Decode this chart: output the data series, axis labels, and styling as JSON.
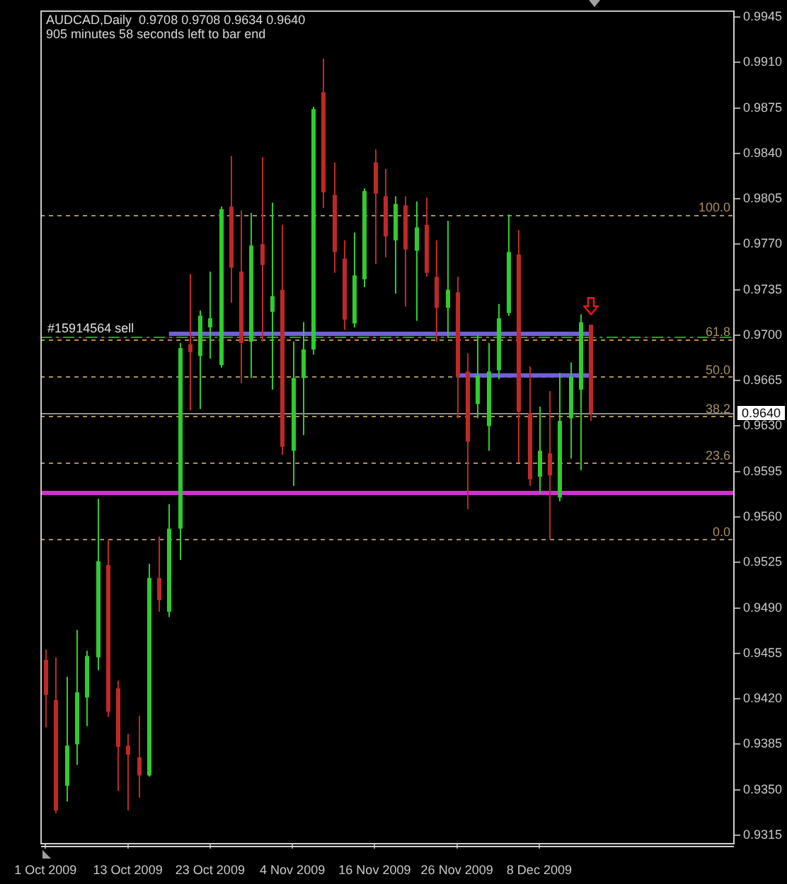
{
  "chart_data": {
    "type": "candlestick",
    "title": "AUDCAD,Daily  0.9708 0.9708 0.9634 0.9640",
    "subtitle": "905 minutes 58 seconds left to bar end",
    "categories": [
      "1 Oct 2009",
      null,
      null,
      null,
      null,
      null,
      null,
      null,
      "13 Oct 2009",
      null,
      null,
      null,
      null,
      null,
      null,
      null,
      "23 Oct 2009",
      null,
      null,
      null,
      null,
      null,
      null,
      null,
      "4 Nov 2009",
      null,
      null,
      null,
      null,
      null,
      null,
      null,
      "16 Nov 2009",
      null,
      null,
      null,
      null,
      null,
      null,
      null,
      "26 Nov 2009",
      null,
      null,
      null,
      null,
      null,
      null,
      null,
      "8 Dec 2009",
      null,
      null,
      null,
      null,
      null
    ],
    "ohlc": [
      [
        0.945,
        0.9458,
        0.9398,
        0.9423
      ],
      [
        0.9419,
        0.9452,
        0.9332,
        0.9334
      ],
      [
        0.9353,
        0.9437,
        0.9341,
        0.9384
      ],
      [
        0.9385,
        0.9473,
        0.9369,
        0.9425
      ],
      [
        0.9421,
        0.9457,
        0.9399,
        0.9453
      ],
      [
        0.9452,
        0.9574,
        0.9442,
        0.9526
      ],
      [
        0.9523,
        0.9542,
        0.9406,
        0.941
      ],
      [
        0.9428,
        0.9434,
        0.9349,
        0.9383
      ],
      [
        0.9384,
        0.9393,
        0.9334,
        0.9377
      ],
      [
        0.9375,
        0.9407,
        0.9344,
        0.9361
      ],
      [
        0.9361,
        0.9524,
        0.936,
        0.9513
      ],
      [
        0.9513,
        0.9545,
        0.9487,
        0.9496
      ],
      [
        0.9487,
        0.957,
        0.9483,
        0.9551
      ],
      [
        0.9551,
        0.9694,
        0.9527,
        0.969
      ],
      [
        0.9693,
        0.9747,
        0.9642,
        0.9687
      ],
      [
        0.9684,
        0.9719,
        0.9643,
        0.9715
      ],
      [
        0.9706,
        0.9749,
        0.9682,
        0.9713
      ],
      [
        0.9677,
        0.9799,
        0.9675,
        0.9797
      ],
      [
        0.9799,
        0.9838,
        0.9725,
        0.9752
      ],
      [
        0.9749,
        0.9796,
        0.9663,
        0.9694
      ],
      [
        0.9695,
        0.9794,
        0.9667,
        0.9769
      ],
      [
        0.977,
        0.9837,
        0.9695,
        0.9754
      ],
      [
        0.9718,
        0.9802,
        0.9658,
        0.973
      ],
      [
        0.9735,
        0.9785,
        0.9608,
        0.9614
      ],
      [
        0.9611,
        0.9695,
        0.9584,
        0.9667
      ],
      [
        0.9667,
        0.971,
        0.9623,
        0.9689
      ],
      [
        0.9689,
        0.9876,
        0.9685,
        0.9874
      ],
      [
        0.9887,
        0.9913,
        0.9798,
        0.981
      ],
      [
        0.9808,
        0.9833,
        0.9748,
        0.9764
      ],
      [
        0.9759,
        0.9773,
        0.9704,
        0.9712
      ],
      [
        0.9709,
        0.9779,
        0.9706,
        0.9746
      ],
      [
        0.9743,
        0.9813,
        0.9737,
        0.9811
      ],
      [
        0.9833,
        0.9843,
        0.9755,
        0.9809
      ],
      [
        0.9807,
        0.9828,
        0.976,
        0.9776
      ],
      [
        0.9773,
        0.9807,
        0.9732,
        0.9801
      ],
      [
        0.98,
        0.9807,
        0.9722,
        0.9766
      ],
      [
        0.9765,
        0.9803,
        0.9711,
        0.9783
      ],
      [
        0.9785,
        0.9806,
        0.9745,
        0.9748
      ],
      [
        0.9745,
        0.9773,
        0.9695,
        0.9721
      ],
      [
        0.9721,
        0.9788,
        0.9698,
        0.9735
      ],
      [
        0.9733,
        0.9745,
        0.9636,
        0.9668
      ],
      [
        0.9672,
        0.9686,
        0.9566,
        0.9618
      ],
      [
        0.9647,
        0.97,
        0.9636,
        0.9669
      ],
      [
        0.963,
        0.9694,
        0.9611,
        0.9672
      ],
      [
        0.9673,
        0.9724,
        0.9666,
        0.9713
      ],
      [
        0.9717,
        0.9793,
        0.9715,
        0.9764
      ],
      [
        0.9762,
        0.9781,
        0.9602,
        0.9641
      ],
      [
        0.964,
        0.9676,
        0.9584,
        0.9589
      ],
      [
        0.9591,
        0.9645,
        0.9578,
        0.9611
      ],
      [
        0.9609,
        0.9657,
        0.9543,
        0.9592
      ],
      [
        0.9575,
        0.9671,
        0.9572,
        0.9634
      ],
      [
        0.9636,
        0.9679,
        0.9605,
        0.9668
      ],
      [
        0.9658,
        0.9716,
        0.9596,
        0.971
      ],
      [
        0.9708,
        0.9708,
        0.9634,
        0.964
      ]
    ],
    "colors": [
      "#c02828",
      "#c02828",
      "#2ecc2e",
      "#2ecc2e",
      "#2ecc2e",
      "#2ecc2e",
      "#c02828",
      "#c02828",
      "#c02828",
      "#c02828",
      "#2ecc2e",
      "#c02828",
      "#2ecc2e",
      "#2ecc2e",
      "#c02828",
      "#2ecc2e",
      "#2ecc2e",
      "#2ecc2e",
      "#c02828",
      "#c02828",
      "#2ecc2e",
      "#c02828",
      "#2ecc2e",
      "#c02828",
      "#2ecc2e",
      "#2ecc2e",
      "#2ecc2e",
      "#c02828",
      "#c02828",
      "#c02828",
      "#2ecc2e",
      "#2ecc2e",
      "#c02828",
      "#c02828",
      "#2ecc2e",
      "#c02828",
      "#2ecc2e",
      "#c02828",
      "#c02828",
      "#2ecc2e",
      "#c02828",
      "#c02828",
      "#2ecc2e",
      "#2ecc2e",
      "#2ecc2e",
      "#2ecc2e",
      "#c02828",
      "#c02828",
      "#2ecc2e",
      "#c02828",
      "#2ecc2e",
      "#2ecc2e",
      "#2ecc2e",
      "#c02828"
    ],
    "series": [
      {
        "type": "line",
        "color": "#7060d8",
        "values": [
          null,
          null,
          null,
          null,
          null,
          null,
          null,
          null,
          null,
          null,
          null,
          null,
          0.9701,
          0.9701,
          0.9701,
          0.9701,
          0.9701,
          0.9701,
          0.9701,
          0.9701,
          0.9701,
          0.9701,
          0.9701,
          0.9701,
          0.9701,
          0.9701,
          0.9701,
          0.9701,
          0.9701,
          0.9701,
          0.9701,
          0.9701,
          0.9701,
          0.9701,
          0.9701,
          0.9701,
          0.9701,
          0.9701,
          0.9701,
          0.9701,
          0.9701,
          0.9701,
          0.9701,
          0.9701,
          0.9701,
          0.9701,
          0.9701,
          0.9701,
          0.9701,
          0.9701,
          0.9701,
          0.9701,
          0.9701,
          0.9701
        ]
      },
      {
        "type": "line",
        "color": "#7060d8",
        "values": [
          null,
          null,
          null,
          null,
          null,
          null,
          null,
          null,
          null,
          null,
          null,
          null,
          null,
          null,
          null,
          null,
          null,
          null,
          null,
          null,
          null,
          null,
          null,
          null,
          null,
          null,
          null,
          null,
          null,
          null,
          null,
          null,
          null,
          null,
          null,
          null,
          null,
          null,
          null,
          null,
          0.9669,
          0.9669,
          0.9669,
          0.9669,
          0.9669,
          0.9669,
          0.9669,
          0.9669,
          0.9669,
          0.9669,
          0.9669,
          0.9669,
          0.9669,
          0.9669
        ]
      }
    ],
    "ref_lines": [
      {
        "axis": "y",
        "value": 0.9699,
        "label": "#15914564 sell",
        "color": "#00b400",
        "line_style": "dashed"
      },
      {
        "axis": "y",
        "value": 0.964,
        "label": "0.9640",
        "color": "#8c8c8c",
        "line_style": "solid"
      },
      {
        "axis": "y",
        "value": 0.9579,
        "color": "#cc33cc",
        "line_style": "solid"
      },
      {
        "axis": "y",
        "value": 0.9793,
        "color": "#a89060",
        "line_style": "dotted"
      },
      {
        "axis": "y",
        "value": 0.9697,
        "color": "#a89060",
        "line_style": "dotted"
      },
      {
        "axis": "y",
        "value": 0.9668,
        "color": "#a89060",
        "line_style": "dotted"
      },
      {
        "axis": "y",
        "value": 0.9638,
        "color": "#a89060",
        "line_style": "dotted"
      },
      {
        "axis": "y",
        "value": 0.9602,
        "color": "#a89060",
        "line_style": "dotted"
      },
      {
        "axis": "y",
        "value": 0.9543,
        "color": "#a89060",
        "line_style": "dotted"
      }
    ],
    "annotations": [
      {
        "text": "100.0",
        "y": 0.9793
      },
      {
        "text": "61.8",
        "y": 0.9697
      },
      {
        "text": "50.0",
        "y": 0.9668
      },
      {
        "text": "38.2",
        "y": 0.9638
      },
      {
        "text": "23.6",
        "y": 0.9602
      },
      {
        "text": "0.0",
        "y": 0.9543
      }
    ],
    "ylim": [
      0.9309,
      0.995
    ],
    "yticks": [
      0.9315,
      {
        "value": 0.935,
        "label": "0.9350"
      },
      0.9385,
      {
        "value": 0.942,
        "label": "0.9420"
      },
      0.9455,
      {
        "value": 0.949,
        "label": "0.9490"
      },
      0.9525,
      {
        "value": 0.956,
        "label": "0.9560"
      },
      0.9595,
      {
        "value": 0.963,
        "label": "0.9630"
      },
      0.9665,
      {
        "value": 0.97,
        "label": "0.9700"
      },
      0.9735,
      {
        "value": 0.977,
        "label": "0.9770"
      },
      0.9805,
      {
        "value": 0.984,
        "label": "0.9840"
      },
      0.9875,
      {
        "value": 0.991,
        "label": "0.9910"
      },
      0.9945
    ]
  }
}
